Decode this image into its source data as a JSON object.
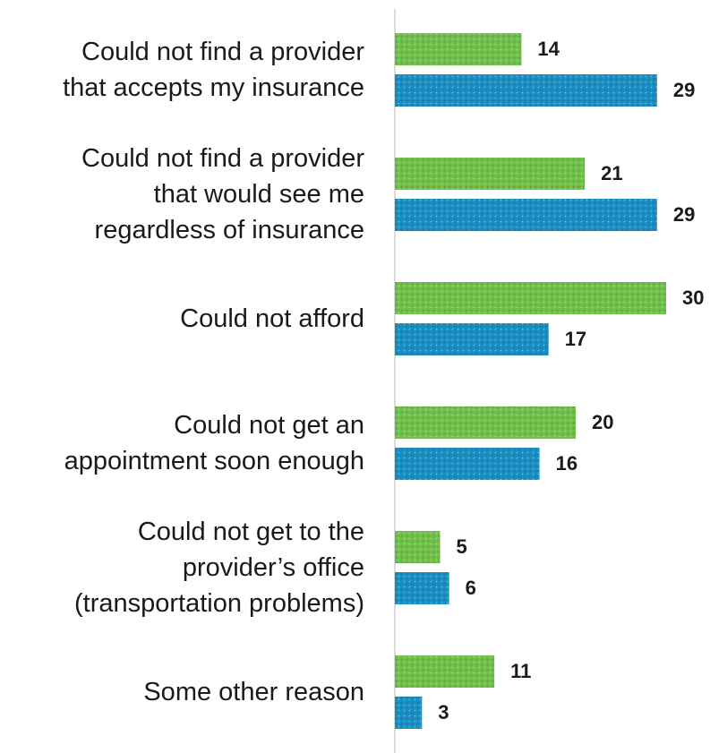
{
  "chart_data": {
    "type": "bar",
    "orientation": "horizontal",
    "categories": [
      "Could not find a provider\nthat accepts my insurance",
      "Could not find a provider\nthat would see me\nregardless of insurance",
      "Could not afford",
      "Could not get an\nappointment soon enough",
      "Could not get to the\nprovider’s office\n(transportation problems)",
      "Some other reason"
    ],
    "series": [
      {
        "color": "#70bf4a",
        "values": [
          14,
          21,
          30,
          20,
          5,
          11
        ]
      },
      {
        "color": "#1b8ec1",
        "values": [
          29,
          29,
          17,
          16,
          6,
          3
        ]
      }
    ]
  }
}
